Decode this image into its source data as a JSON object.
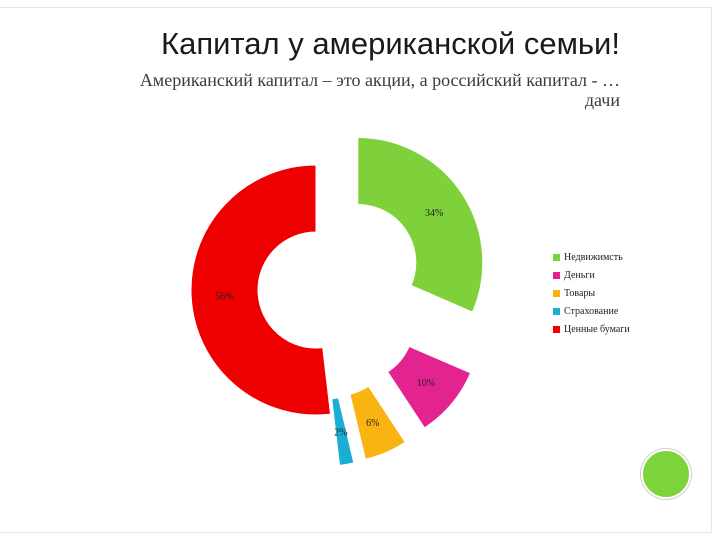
{
  "slide": {
    "title": "Капитал у американской семьи!",
    "subtitle_line1": "Американский капитал – это акции, а российский капитал - …",
    "subtitle_line2": "дачи"
  },
  "chart_data": {
    "type": "pie",
    "variant": "exploded-donut",
    "legend_position": "right",
    "categories": [
      "Недвижимсть",
      "Деньги",
      "Товары",
      "Страхование",
      "Ценные бумаги"
    ],
    "values": [
      34,
      10,
      6,
      2,
      56
    ],
    "data_labels": [
      "34%",
      "10%",
      "6%",
      "2%",
      "56%"
    ],
    "colors": [
      "#7fd13b",
      "#e3238f",
      "#fab412",
      "#1aaed6",
      "#ef0000"
    ]
  }
}
